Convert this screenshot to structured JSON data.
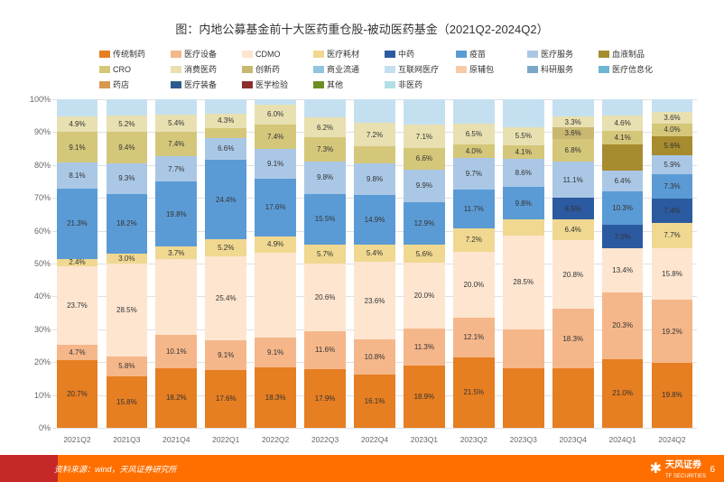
{
  "title": "图：内地公募基金前十大医药重仓股-被动医药基金（2021Q2-2024Q2）",
  "legend": [
    {
      "label": "传统制药",
      "color": "#e67e22"
    },
    {
      "label": "医疗设备",
      "color": "#f5b78a"
    },
    {
      "label": "CDMO",
      "color": "#fde5cf"
    },
    {
      "label": "医疗耗材",
      "color": "#f0d890"
    },
    {
      "label": "中药",
      "color": "#2c5aa0"
    },
    {
      "label": "疫苗",
      "color": "#5b9bd5"
    },
    {
      "label": "医疗服务",
      "color": "#aac8e6"
    },
    {
      "label": "血液制品",
      "color": "#a68c2e"
    },
    {
      "label": "CRO",
      "color": "#d5c77a"
    },
    {
      "label": "消费医药",
      "color": "#e8e0b0"
    },
    {
      "label": "创新药",
      "color": "#c9b870"
    },
    {
      "label": "商业流通",
      "color": "#90c4e0"
    },
    {
      "label": "互联网医疗",
      "color": "#c4e0f0"
    },
    {
      "label": "原辅包",
      "color": "#f8cba7"
    },
    {
      "label": "科研服务",
      "color": "#7ba8c9"
    },
    {
      "label": "医疗信息化",
      "color": "#6fb5d6"
    },
    {
      "label": "药店",
      "color": "#d89850"
    },
    {
      "label": "医疗装备",
      "color": "#2e5c8a"
    },
    {
      "label": "医学检验",
      "color": "#8b2e2e"
    },
    {
      "label": "其他",
      "color": "#6b8e23"
    },
    {
      "label": "非医药",
      "color": "#b0e0e6"
    }
  ],
  "yaxis": {
    "min": 0,
    "max": 100,
    "step": 10,
    "suffix": "%"
  },
  "periods": [
    "2021Q2",
    "2021Q3",
    "2021Q4",
    "2022Q1",
    "2022Q2",
    "2022Q3",
    "2022Q4",
    "2023Q1",
    "2023Q2",
    "2023Q3",
    "2023Q4",
    "2024Q1",
    "2024Q2"
  ],
  "grid_color": "#e0e0e0",
  "background_color": "#ffffff",
  "label_fontsize": 8,
  "stacks": [
    [
      {
        "v": 20.7,
        "c": "#e67e22",
        "l": "20.7%"
      },
      {
        "v": 4.7,
        "c": "#f5b78a",
        "l": "4.7%"
      },
      {
        "v": 23.7,
        "c": "#fde5cf",
        "l": "23.7%"
      },
      {
        "v": 2.4,
        "c": "#f0d890",
        "l": "2.4%"
      },
      {
        "v": 21.3,
        "c": "#5b9bd5",
        "l": "21.3%"
      },
      {
        "v": 8.1,
        "c": "#aac8e6",
        "l": "8.1%"
      },
      {
        "v": 9.1,
        "c": "#d5c77a",
        "l": "9.1%"
      },
      {
        "v": 4.9,
        "c": "#e8e0b0",
        "l": "4.9%"
      },
      {
        "v": 5.1,
        "c": "#c4e0f0",
        "l": ""
      }
    ],
    [
      {
        "v": 15.8,
        "c": "#e67e22",
        "l": "15.8%"
      },
      {
        "v": 5.8,
        "c": "#f5b78a",
        "l": "5.8%"
      },
      {
        "v": 28.5,
        "c": "#fde5cf",
        "l": "28.5%"
      },
      {
        "v": 3.0,
        "c": "#f0d890",
        "l": "3.0%"
      },
      {
        "v": 18.2,
        "c": "#5b9bd5",
        "l": "18.2%"
      },
      {
        "v": 9.3,
        "c": "#aac8e6",
        "l": "9.3%"
      },
      {
        "v": 9.4,
        "c": "#d5c77a",
        "l": "9.4%"
      },
      {
        "v": 5.2,
        "c": "#e8e0b0",
        "l": "5.2%"
      },
      {
        "v": 4.8,
        "c": "#c4e0f0",
        "l": ""
      }
    ],
    [
      {
        "v": 18.2,
        "c": "#e67e22",
        "l": "18.2%"
      },
      {
        "v": 10.1,
        "c": "#f5b78a",
        "l": "10.1%"
      },
      {
        "v": 23.1,
        "c": "#fde5cf",
        "l": ""
      },
      {
        "v": 3.7,
        "c": "#f0d890",
        "l": "3.7%"
      },
      {
        "v": 19.8,
        "c": "#5b9bd5",
        "l": "19.8%"
      },
      {
        "v": 7.7,
        "c": "#aac8e6",
        "l": "7.7%"
      },
      {
        "v": 7.4,
        "c": "#d5c77a",
        "l": "7.4%"
      },
      {
        "v": 5.4,
        "c": "#e8e0b0",
        "l": "5.4%"
      },
      {
        "v": 4.6,
        "c": "#c4e0f0",
        "l": ""
      }
    ],
    [
      {
        "v": 17.6,
        "c": "#e67e22",
        "l": "17.6%"
      },
      {
        "v": 9.1,
        "c": "#f5b78a",
        "l": "9.1%"
      },
      {
        "v": 25.4,
        "c": "#fde5cf",
        "l": "25.4%"
      },
      {
        "v": 5.2,
        "c": "#f0d890",
        "l": "5.2%"
      },
      {
        "v": 24.4,
        "c": "#5b9bd5",
        "l": "24.4%"
      },
      {
        "v": 6.6,
        "c": "#aac8e6",
        "l": "6.6%"
      },
      {
        "v": 3.0,
        "c": "#d5c77a",
        "l": ""
      },
      {
        "v": 4.3,
        "c": "#e8e0b0",
        "l": "4.3%"
      },
      {
        "v": 4.4,
        "c": "#c4e0f0",
        "l": ""
      }
    ],
    [
      {
        "v": 18.3,
        "c": "#e67e22",
        "l": "18.3%"
      },
      {
        "v": 9.1,
        "c": "#f5b78a",
        "l": "9.1%"
      },
      {
        "v": 26.0,
        "c": "#fde5cf",
        "l": ""
      },
      {
        "v": 4.9,
        "c": "#f0d890",
        "l": "4.9%"
      },
      {
        "v": 17.6,
        "c": "#5b9bd5",
        "l": "17.6%"
      },
      {
        "v": 9.1,
        "c": "#aac8e6",
        "l": "9.1%"
      },
      {
        "v": 7.4,
        "c": "#d5c77a",
        "l": "7.4%"
      },
      {
        "v": 6.0,
        "c": "#e8e0b0",
        "l": "6.0%"
      },
      {
        "v": 1.6,
        "c": "#c4e0f0",
        "l": ""
      }
    ],
    [
      {
        "v": 17.9,
        "c": "#e67e22",
        "l": "17.9%"
      },
      {
        "v": 11.6,
        "c": "#f5b78a",
        "l": "11.6%"
      },
      {
        "v": 20.6,
        "c": "#fde5cf",
        "l": "20.6%"
      },
      {
        "v": 5.7,
        "c": "#f0d890",
        "l": "5.7%"
      },
      {
        "v": 15.5,
        "c": "#5b9bd5",
        "l": "15.5%"
      },
      {
        "v": 9.8,
        "c": "#aac8e6",
        "l": "9.8%"
      },
      {
        "v": 7.3,
        "c": "#d5c77a",
        "l": "7.3%"
      },
      {
        "v": 6.2,
        "c": "#e8e0b0",
        "l": "6.2%"
      },
      {
        "v": 5.4,
        "c": "#c4e0f0",
        "l": ""
      }
    ],
    [
      {
        "v": 16.1,
        "c": "#e67e22",
        "l": "16.1%"
      },
      {
        "v": 10.8,
        "c": "#f5b78a",
        "l": "10.8%"
      },
      {
        "v": 23.6,
        "c": "#fde5cf",
        "l": "23.6%"
      },
      {
        "v": 5.4,
        "c": "#f0d890",
        "l": "5.4%"
      },
      {
        "v": 14.9,
        "c": "#5b9bd5",
        "l": "14.9%"
      },
      {
        "v": 9.8,
        "c": "#aac8e6",
        "l": "9.8%"
      },
      {
        "v": 5.0,
        "c": "#d5c77a",
        "l": ""
      },
      {
        "v": 7.2,
        "c": "#e8e0b0",
        "l": "7.2%"
      },
      {
        "v": 7.2,
        "c": "#c4e0f0",
        "l": ""
      }
    ],
    [
      {
        "v": 18.9,
        "c": "#e67e22",
        "l": "18.9%"
      },
      {
        "v": 11.3,
        "c": "#f5b78a",
        "l": "11.3%"
      },
      {
        "v": 20.0,
        "c": "#fde5cf",
        "l": "20.0%"
      },
      {
        "v": 5.6,
        "c": "#f0d890",
        "l": "5.6%"
      },
      {
        "v": 12.9,
        "c": "#5b9bd5",
        "l": "12.9%"
      },
      {
        "v": 9.9,
        "c": "#aac8e6",
        "l": "9.9%"
      },
      {
        "v": 6.6,
        "c": "#d5c77a",
        "l": "6.6%"
      },
      {
        "v": 7.1,
        "c": "#e8e0b0",
        "l": "7.1%"
      },
      {
        "v": 7.7,
        "c": "#c4e0f0",
        "l": ""
      }
    ],
    [
      {
        "v": 21.5,
        "c": "#e67e22",
        "l": "21.5%"
      },
      {
        "v": 12.1,
        "c": "#f5b78a",
        "l": "12.1%"
      },
      {
        "v": 20.0,
        "c": "#fde5cf",
        "l": "20.0%"
      },
      {
        "v": 7.2,
        "c": "#f0d890",
        "l": "7.2%"
      },
      {
        "v": 11.7,
        "c": "#5b9bd5",
        "l": "11.7%"
      },
      {
        "v": 9.7,
        "c": "#aac8e6",
        "l": "9.7%"
      },
      {
        "v": 4.0,
        "c": "#d5c77a",
        "l": "4.0%"
      },
      {
        "v": 6.5,
        "c": "#e8e0b0",
        "l": "6.5%"
      },
      {
        "v": 7.3,
        "c": "#c4e0f0",
        "l": ""
      }
    ],
    [
      {
        "v": 18.0,
        "c": "#e67e22",
        "l": ""
      },
      {
        "v": 12.0,
        "c": "#f5b78a",
        "l": ""
      },
      {
        "v": 28.5,
        "c": "#fde5cf",
        "l": "28.5%"
      },
      {
        "v": 5.0,
        "c": "#f0d890",
        "l": ""
      },
      {
        "v": 9.8,
        "c": "#5b9bd5",
        "l": "9.8%"
      },
      {
        "v": 8.6,
        "c": "#aac8e6",
        "l": "8.6%"
      },
      {
        "v": 4.1,
        "c": "#d5c77a",
        "l": "4.1%"
      },
      {
        "v": 5.5,
        "c": "#e8e0b0",
        "l": "5.5%"
      },
      {
        "v": 8.5,
        "c": "#c4e0f0",
        "l": ""
      }
    ],
    [
      {
        "v": 18.0,
        "c": "#e67e22",
        "l": ""
      },
      {
        "v": 18.3,
        "c": "#f5b78a",
        "l": "18.3%"
      },
      {
        "v": 20.8,
        "c": "#fde5cf",
        "l": "20.8%"
      },
      {
        "v": 6.4,
        "c": "#f0d890",
        "l": "6.4%"
      },
      {
        "v": 6.5,
        "c": "#2c5aa0",
        "l": "6.5%"
      },
      {
        "v": 11.1,
        "c": "#aac8e6",
        "l": "11.1%"
      },
      {
        "v": 6.8,
        "c": "#d5c77a",
        "l": "6.8%"
      },
      {
        "v": 3.6,
        "c": "#c9b870",
        "l": "3.6%"
      },
      {
        "v": 3.3,
        "c": "#e8e0b0",
        "l": "3.3%"
      },
      {
        "v": 5.2,
        "c": "#c4e0f0",
        "l": ""
      }
    ],
    [
      {
        "v": 21.0,
        "c": "#e67e22",
        "l": "21.0%"
      },
      {
        "v": 20.3,
        "c": "#f5b78a",
        "l": "20.3%"
      },
      {
        "v": 13.4,
        "c": "#fde5cf",
        "l": "13.4%"
      },
      {
        "v": 7.0,
        "c": "#2c5aa0",
        "l": "7.0%"
      },
      {
        "v": 10.3,
        "c": "#5b9bd5",
        "l": "10.3%"
      },
      {
        "v": 6.4,
        "c": "#aac8e6",
        "l": "6.4%"
      },
      {
        "v": 8.0,
        "c": "#a68c2e",
        "l": ""
      },
      {
        "v": 4.1,
        "c": "#d5c77a",
        "l": "4.1%"
      },
      {
        "v": 4.6,
        "c": "#e8e0b0",
        "l": "4.6%"
      },
      {
        "v": 4.9,
        "c": "#c4e0f0",
        "l": ""
      }
    ],
    [
      {
        "v": 19.8,
        "c": "#e67e22",
        "l": "19.8%"
      },
      {
        "v": 19.2,
        "c": "#f5b78a",
        "l": "19.2%"
      },
      {
        "v": 15.8,
        "c": "#fde5cf",
        "l": "15.8%"
      },
      {
        "v": 7.7,
        "c": "#f0d890",
        "l": "7.7%"
      },
      {
        "v": 7.4,
        "c": "#2c5aa0",
        "l": "7.4%"
      },
      {
        "v": 7.3,
        "c": "#5b9bd5",
        "l": "7.3%"
      },
      {
        "v": 5.9,
        "c": "#aac8e6",
        "l": "5.9%"
      },
      {
        "v": 5.6,
        "c": "#a68c2e",
        "l": "5.6%"
      },
      {
        "v": 4.0,
        "c": "#d5c77a",
        "l": "4.0%"
      },
      {
        "v": 3.6,
        "c": "#e8e0b0",
        "l": "3.6%"
      },
      {
        "v": 3.7,
        "c": "#c4e0f0",
        "l": ""
      }
    ]
  ],
  "footer": {
    "source": "资料来源：wind，天风证券研究所",
    "logo_text": "天风证券",
    "logo_sub": "TF SECURITIES",
    "page": "6"
  }
}
